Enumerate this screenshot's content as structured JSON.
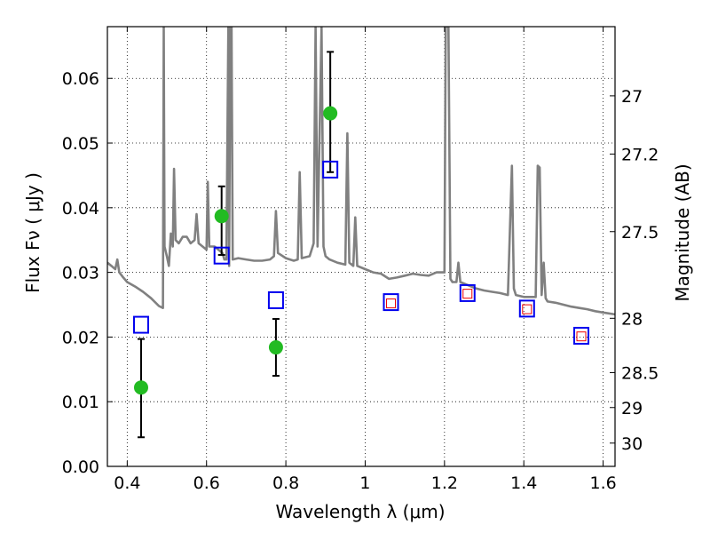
{
  "chart_data": {
    "type": "scatter",
    "title": "",
    "xlabel": "Wavelength  λ (μm)",
    "ylabel": "Flux  Fν  ( μJy )",
    "y2label": "Magnitude (AB)",
    "xlim": [
      0.35,
      1.63
    ],
    "ylim": [
      0.0,
      0.068
    ],
    "grid": true,
    "x_ticks": [
      0.4,
      0.6,
      0.8,
      1.0,
      1.2,
      1.4,
      1.6
    ],
    "x_tick_labels": [
      "0.4",
      "0.6",
      "0.8",
      "1",
      "1.2",
      "1.4",
      "1.6"
    ],
    "y_ticks": [
      0.0,
      0.01,
      0.02,
      0.03,
      0.04,
      0.05,
      0.06
    ],
    "y_tick_labels": [
      "0.00",
      "0.01",
      "0.02",
      "0.03",
      "0.04",
      "0.05",
      "0.06"
    ],
    "y2_ticks": [
      {
        "label": "27",
        "flux": 0.0573
      },
      {
        "label": "27.2",
        "flux": 0.0483
      },
      {
        "label": "27.5",
        "flux": 0.0363
      },
      {
        "label": "28",
        "flux": 0.0229
      },
      {
        "label": "28.5",
        "flux": 0.0145
      },
      {
        "label": "29",
        "flux": 0.0091
      },
      {
        "label": "30",
        "flux": 0.0036
      }
    ],
    "colors": {
      "spectrum": "#808080",
      "observed": "#22bb22",
      "model": "#0000ee",
      "model_inner": "#ee0000",
      "errorbar": "#000000"
    },
    "series": [
      {
        "kind": "line",
        "points": [
          [
            0.35,
            0.0315
          ],
          [
            0.36,
            0.031
          ],
          [
            0.37,
            0.0305
          ],
          [
            0.375,
            0.032
          ],
          [
            0.38,
            0.03
          ],
          [
            0.39,
            0.0292
          ],
          [
            0.4,
            0.0285
          ],
          [
            0.42,
            0.0278
          ],
          [
            0.44,
            0.027
          ],
          [
            0.46,
            0.026
          ],
          [
            0.48,
            0.0248
          ],
          [
            0.49,
            0.0245
          ],
          [
            0.492,
            0.068
          ],
          [
            0.494,
            0.034
          ],
          [
            0.5,
            0.0325
          ],
          [
            0.505,
            0.031
          ],
          [
            0.51,
            0.036
          ],
          [
            0.515,
            0.034
          ],
          [
            0.518,
            0.046
          ],
          [
            0.522,
            0.035
          ],
          [
            0.53,
            0.0345
          ],
          [
            0.54,
            0.0355
          ],
          [
            0.55,
            0.0355
          ],
          [
            0.56,
            0.0345
          ],
          [
            0.57,
            0.035
          ],
          [
            0.575,
            0.039
          ],
          [
            0.58,
            0.0345
          ],
          [
            0.59,
            0.034
          ],
          [
            0.6,
            0.0335
          ],
          [
            0.603,
            0.044
          ],
          [
            0.607,
            0.034
          ],
          [
            0.62,
            0.034
          ],
          [
            0.63,
            0.0335
          ],
          [
            0.64,
            0.033
          ],
          [
            0.645,
            0.032
          ],
          [
            0.65,
            0.032
          ],
          [
            0.655,
            0.068
          ],
          [
            0.657,
            0.031
          ],
          [
            0.66,
            0.068
          ],
          [
            0.663,
            0.068
          ],
          [
            0.666,
            0.032
          ],
          [
            0.68,
            0.0322
          ],
          [
            0.7,
            0.032
          ],
          [
            0.72,
            0.0318
          ],
          [
            0.74,
            0.0318
          ],
          [
            0.76,
            0.032
          ],
          [
            0.77,
            0.0325
          ],
          [
            0.775,
            0.0395
          ],
          [
            0.78,
            0.033
          ],
          [
            0.8,
            0.0322
          ],
          [
            0.82,
            0.0318
          ],
          [
            0.83,
            0.032
          ],
          [
            0.835,
            0.0455
          ],
          [
            0.84,
            0.0322
          ],
          [
            0.86,
            0.0325
          ],
          [
            0.87,
            0.0345
          ],
          [
            0.875,
            0.068
          ],
          [
            0.88,
            0.034
          ],
          [
            0.89,
            0.068
          ],
          [
            0.895,
            0.034
          ],
          [
            0.9,
            0.0325
          ],
          [
            0.91,
            0.032
          ],
          [
            0.93,
            0.0315
          ],
          [
            0.95,
            0.0312
          ],
          [
            0.955,
            0.0515
          ],
          [
            0.96,
            0.0315
          ],
          [
            0.97,
            0.031
          ],
          [
            0.975,
            0.0385
          ],
          [
            0.98,
            0.031
          ],
          [
            1.0,
            0.0305
          ],
          [
            1.02,
            0.03
          ],
          [
            1.04,
            0.0298
          ],
          [
            1.06,
            0.029
          ],
          [
            1.08,
            0.0292
          ],
          [
            1.1,
            0.0295
          ],
          [
            1.12,
            0.0298
          ],
          [
            1.14,
            0.0296
          ],
          [
            1.16,
            0.0295
          ],
          [
            1.18,
            0.03
          ],
          [
            1.2,
            0.03
          ],
          [
            1.203,
            0.068
          ],
          [
            1.21,
            0.068
          ],
          [
            1.215,
            0.029
          ],
          [
            1.22,
            0.0285
          ],
          [
            1.23,
            0.0285
          ],
          [
            1.235,
            0.0315
          ],
          [
            1.24,
            0.0285
          ],
          [
            1.26,
            0.028
          ],
          [
            1.28,
            0.0275
          ],
          [
            1.3,
            0.0272
          ],
          [
            1.32,
            0.027
          ],
          [
            1.34,
            0.0268
          ],
          [
            1.36,
            0.0265
          ],
          [
            1.37,
            0.0465
          ],
          [
            1.375,
            0.0275
          ],
          [
            1.38,
            0.0265
          ],
          [
            1.4,
            0.0262
          ],
          [
            1.42,
            0.0262
          ],
          [
            1.43,
            0.0262
          ],
          [
            1.435,
            0.0465
          ],
          [
            1.44,
            0.0462
          ],
          [
            1.445,
            0.0265
          ],
          [
            1.45,
            0.0315
          ],
          [
            1.455,
            0.026
          ],
          [
            1.46,
            0.0255
          ],
          [
            1.48,
            0.0253
          ],
          [
            1.5,
            0.025
          ],
          [
            1.52,
            0.0247
          ],
          [
            1.54,
            0.0245
          ],
          [
            1.56,
            0.0243
          ],
          [
            1.58,
            0.024
          ],
          [
            1.6,
            0.0238
          ],
          [
            1.63,
            0.0235
          ]
        ]
      },
      {
        "kind": "observed",
        "points": [
          {
            "x": 0.435,
            "y": 0.0122,
            "err_low": 0.0045,
            "err_high": 0.0197
          },
          {
            "x": 0.638,
            "y": 0.0387,
            "err_low": 0.0327,
            "err_high": 0.0433
          },
          {
            "x": 0.775,
            "y": 0.0184,
            "err_low": 0.014,
            "err_high": 0.0228
          },
          {
            "x": 0.912,
            "y": 0.0546,
            "err_low": 0.0455,
            "err_high": 0.0641
          }
        ]
      },
      {
        "kind": "model",
        "points": [
          {
            "x": 0.435,
            "y": 0.0219
          },
          {
            "x": 0.638,
            "y": 0.0326
          },
          {
            "x": 0.775,
            "y": 0.0257
          },
          {
            "x": 0.912,
            "y": 0.0459
          },
          {
            "x": 1.065,
            "y": 0.0254
          },
          {
            "x": 1.258,
            "y": 0.0268
          },
          {
            "x": 1.408,
            "y": 0.0244
          },
          {
            "x": 1.545,
            "y": 0.0202
          }
        ]
      },
      {
        "kind": "model-inner",
        "points": [
          {
            "x": 1.065,
            "y": 0.0252
          },
          {
            "x": 1.258,
            "y": 0.0267
          },
          {
            "x": 1.408,
            "y": 0.0243
          },
          {
            "x": 1.545,
            "y": 0.0201
          }
        ]
      }
    ]
  }
}
